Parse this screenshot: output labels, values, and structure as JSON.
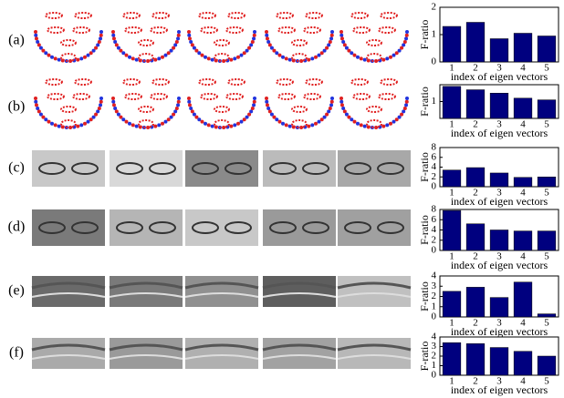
{
  "row_labels": [
    "(a)",
    "(b)",
    "(c)",
    "(d)",
    "(e)",
    "(f)"
  ],
  "chart_data": [
    {
      "type": "bar",
      "ylabel": "F-ratio",
      "xlabel": "index of eigen vectors",
      "categories": [
        "1",
        "2",
        "3",
        "4",
        "5"
      ],
      "values": [
        1.3,
        1.45,
        0.85,
        1.05,
        0.95
      ],
      "color": "#00007f",
      "ylim": [
        0,
        2
      ],
      "yticks": [
        0,
        1,
        2
      ]
    },
    {
      "type": "bar",
      "ylabel": "F-ratio",
      "xlabel": "index of eigen vectors",
      "categories": [
        "1",
        "2",
        "3",
        "4",
        "5"
      ],
      "values": [
        1.45,
        1.35,
        1.25,
        1.1,
        1.05
      ],
      "color": "#00007f",
      "ylim": [
        0.5,
        1.5
      ],
      "yticks": [
        1
      ]
    },
    {
      "type": "bar",
      "ylabel": "F-ratio",
      "xlabel": "index of eigen vectors",
      "categories": [
        "1",
        "2",
        "3",
        "4",
        "5"
      ],
      "values": [
        3.4,
        3.9,
        2.8,
        1.9,
        2.0
      ],
      "color": "#00007f",
      "ylim": [
        0,
        8
      ],
      "yticks": [
        0,
        2,
        4,
        6,
        8
      ]
    },
    {
      "type": "bar",
      "ylabel": "F-ratio",
      "xlabel": "index of eigen vectors",
      "categories": [
        "1",
        "2",
        "3",
        "4",
        "5"
      ],
      "values": [
        7.8,
        5.2,
        4.0,
        3.8,
        3.8
      ],
      "color": "#00007f",
      "ylim": [
        0,
        8
      ],
      "yticks": [
        0,
        2,
        4,
        6,
        8
      ]
    },
    {
      "type": "bar",
      "ylabel": "F-ratio",
      "xlabel": "index of eigen vectors",
      "categories": [
        "1",
        "2",
        "3",
        "4",
        "5"
      ],
      "values": [
        2.5,
        2.9,
        1.9,
        3.4,
        0.3
      ],
      "color": "#00007f",
      "ylim": [
        0,
        4
      ],
      "yticks": [
        0,
        1,
        2,
        3,
        4
      ]
    },
    {
      "type": "bar",
      "ylabel": "F-ratio",
      "xlabel": "index of eigen vectors",
      "categories": [
        "1",
        "2",
        "3",
        "4",
        "5"
      ],
      "values": [
        3.4,
        3.3,
        2.9,
        2.5,
        2.0
      ],
      "color": "#00007f",
      "ylim": [
        0,
        4
      ],
      "yticks": [
        0,
        1,
        2,
        3,
        4
      ]
    }
  ]
}
